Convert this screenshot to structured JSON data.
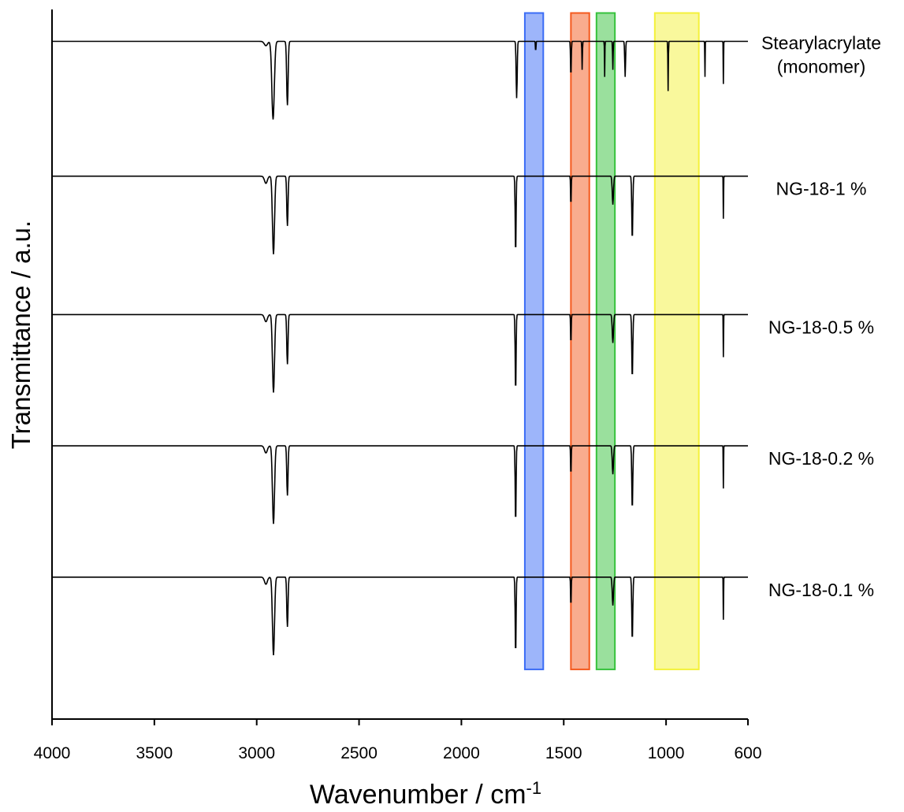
{
  "chart_data": {
    "type": "line",
    "title": "",
    "xlabel": "Wavenumber / cm",
    "xlabel_superscript": "-1",
    "ylabel": "Transmittance / a.u.",
    "xlim": [
      4000,
      600
    ],
    "x_reversed": true,
    "grid": false,
    "x_ticks": [
      4000,
      3500,
      3000,
      2500,
      2000,
      1500,
      1000,
      600
    ],
    "tick_labels": [
      "4000",
      "3500",
      "3000",
      "2500",
      "2000",
      "1500",
      "1000",
      "600"
    ],
    "highlight_bands": [
      {
        "from": 1690,
        "to": 1600,
        "color": "#3b6cf5"
      },
      {
        "from": 1465,
        "to": 1375,
        "color": "#f45a1e"
      },
      {
        "from": 1340,
        "to": 1250,
        "color": "#36c23c"
      },
      {
        "from": 1055,
        "to": 840,
        "color": "#f4f13a"
      }
    ],
    "series": [
      {
        "name": "Stearylacrylate",
        "name_line2": "(monomer)",
        "baseline": 0.955,
        "peaks": [
          [
            2955,
            0.08,
            0.03
          ],
          [
            2920,
            0.06,
            0.55
          ],
          [
            2850,
            0.035,
            0.45
          ],
          [
            1730,
            0.025,
            0.4
          ],
          [
            1637,
            0.012,
            0.08
          ],
          [
            1465,
            0.018,
            0.25
          ],
          [
            1410,
            0.012,
            0.2
          ],
          [
            1300,
            0.01,
            0.25
          ],
          [
            1260,
            0.014,
            0.2
          ],
          [
            1200,
            0.02,
            0.25
          ],
          [
            990,
            0.012,
            0.35
          ],
          [
            810,
            0.008,
            0.25
          ],
          [
            720,
            0.008,
            0.3
          ]
        ]
      },
      {
        "name": "NG-18-1 %",
        "baseline": 0.765,
        "peaks": [
          [
            2955,
            0.07,
            0.05
          ],
          [
            2918,
            0.05,
            0.55
          ],
          [
            2850,
            0.03,
            0.35
          ],
          [
            1735,
            0.022,
            0.55
          ],
          [
            1465,
            0.015,
            0.22
          ],
          [
            1260,
            0.03,
            0.2
          ],
          [
            1165,
            0.025,
            0.45
          ],
          [
            720,
            0.008,
            0.3
          ]
        ]
      },
      {
        "name": "NG-18-0.5 %",
        "baseline": 0.57,
        "peaks": [
          [
            2955,
            0.07,
            0.05
          ],
          [
            2918,
            0.05,
            0.55
          ],
          [
            2850,
            0.03,
            0.35
          ],
          [
            1735,
            0.022,
            0.55
          ],
          [
            1465,
            0.015,
            0.22
          ],
          [
            1260,
            0.03,
            0.2
          ],
          [
            1165,
            0.025,
            0.45
          ],
          [
            720,
            0.008,
            0.3
          ]
        ]
      },
      {
        "name": "NG-18-0.2 %",
        "baseline": 0.385,
        "peaks": [
          [
            2955,
            0.07,
            0.05
          ],
          [
            2918,
            0.05,
            0.55
          ],
          [
            2850,
            0.03,
            0.35
          ],
          [
            1735,
            0.022,
            0.55
          ],
          [
            1465,
            0.015,
            0.22
          ],
          [
            1260,
            0.03,
            0.2
          ],
          [
            1165,
            0.025,
            0.45
          ],
          [
            720,
            0.008,
            0.3
          ]
        ]
      },
      {
        "name": "NG-18-0.1 %",
        "baseline": 0.2,
        "peaks": [
          [
            2955,
            0.07,
            0.05
          ],
          [
            2918,
            0.05,
            0.55
          ],
          [
            2850,
            0.03,
            0.35
          ],
          [
            1735,
            0.022,
            0.55
          ],
          [
            1465,
            0.015,
            0.22
          ],
          [
            1260,
            0.03,
            0.2
          ],
          [
            1165,
            0.025,
            0.45
          ],
          [
            720,
            0.008,
            0.3
          ]
        ]
      }
    ]
  }
}
